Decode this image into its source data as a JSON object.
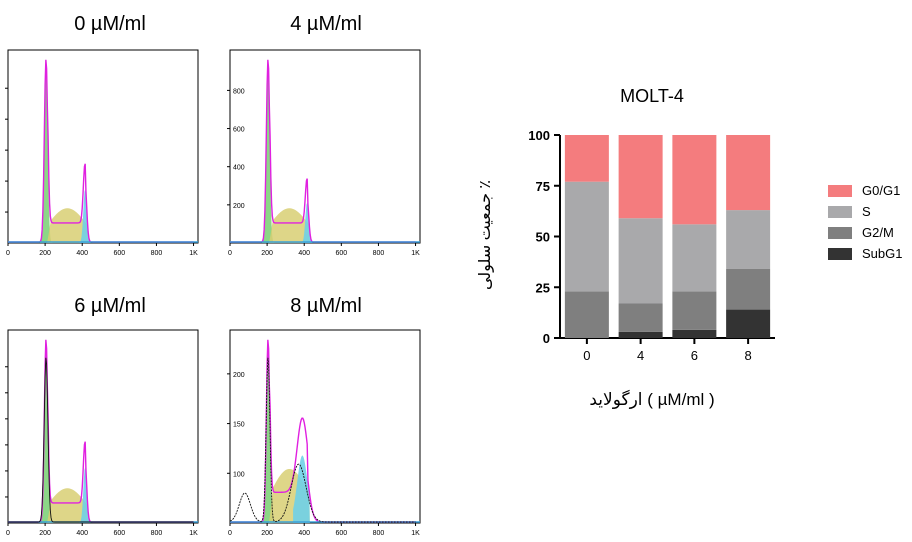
{
  "flow_panels": [
    {
      "title": "0 µM/ml",
      "x_ticks": [
        "0",
        "200",
        "400",
        "600",
        "800",
        "1K"
      ],
      "y_ticks": [
        "",
        "",
        "",
        "",
        ""
      ]
    },
    {
      "title": "4 µM/ml",
      "x_ticks": [
        "0",
        "200",
        "400",
        "600",
        "800",
        "1K"
      ],
      "y_ticks": [
        "200",
        "400",
        "600",
        "800"
      ]
    },
    {
      "title": "6 µM/ml",
      "x_ticks": [
        "0",
        "200",
        "400",
        "600",
        "800",
        "1K"
      ],
      "y_ticks": [
        "",
        "",
        "",
        "",
        "",
        ""
      ]
    },
    {
      "title": "8 µM/ml",
      "x_ticks": [
        "0",
        "200",
        "400",
        "600",
        "800",
        "1K"
      ],
      "y_ticks": [
        "100",
        "150",
        "200"
      ]
    }
  ],
  "chart_data": {
    "type": "bar",
    "stacked": true,
    "title": "MOLT-4",
    "xlabel": "ارگولاید ( µM/ml )",
    "ylabel": "جمعیت سلولی ٪",
    "categories": [
      "0",
      "4",
      "6",
      "8"
    ],
    "ylim": [
      0,
      100
    ],
    "y_ticks": [
      "0",
      "25",
      "50",
      "75",
      "100"
    ],
    "legend_position": "right",
    "series": [
      {
        "name": "SubG1",
        "color": "#333333",
        "values": [
          0,
          3,
          4,
          14
        ]
      },
      {
        "name": "G2/M",
        "color": "#7f7f7f",
        "values": [
          23,
          14,
          19,
          20
        ]
      },
      {
        "name": "S",
        "color": "#a9a9ab",
        "values": [
          54,
          42,
          33,
          29
        ]
      },
      {
        "name": "G0/G1",
        "color": "#f47c7e",
        "values": [
          23,
          41,
          44,
          37
        ]
      }
    ]
  }
}
